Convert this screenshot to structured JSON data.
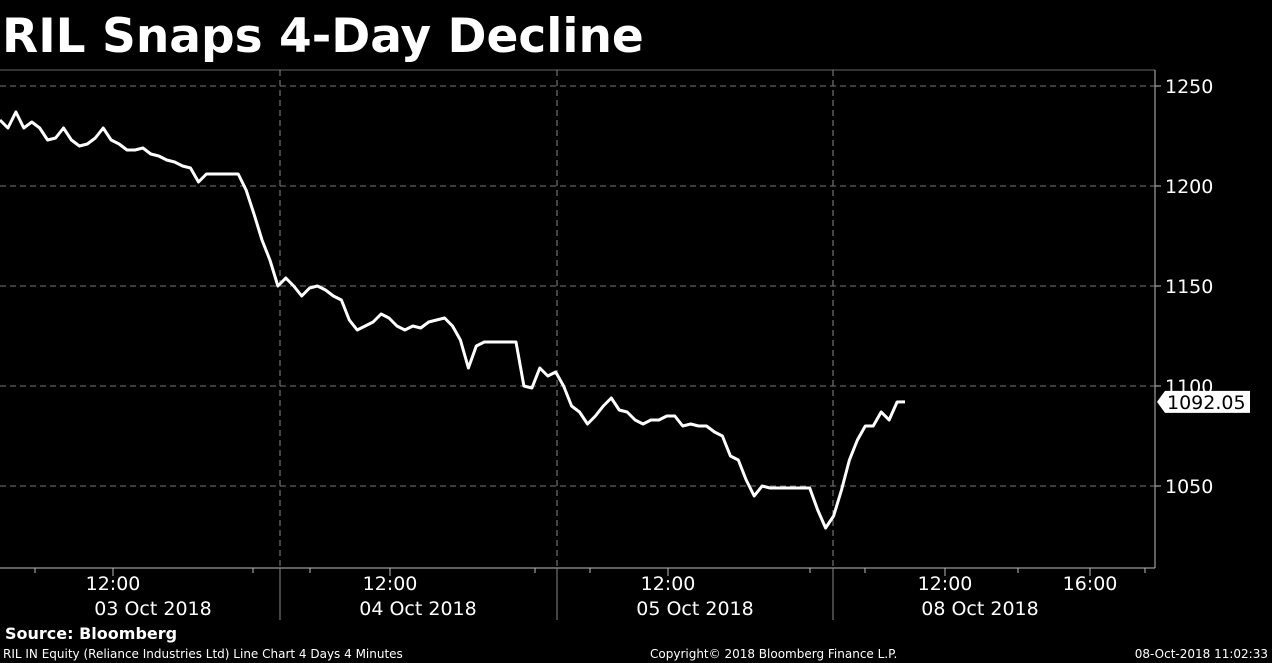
{
  "chart_data": {
    "type": "line",
    "title": "RIL Snaps 4-Day Decline",
    "source": "Source: Bloomberg",
    "description": "RIL IN Equity (Reliance Industries Ltd) Line Chart 4 Days 4 Minutes",
    "copyright": "Copyright© 2018 Bloomberg Finance L.P.",
    "timestamp": "08-Oct-2018 11:02:33",
    "time_labels": [
      "12:00",
      "12:00",
      "12:00",
      "12:00",
      "16:00"
    ],
    "date_labels": [
      "03 Oct 2018",
      "04 Oct 2018",
      "05 Oct 2018",
      "08 Oct 2018"
    ],
    "series": [
      {
        "color": "#ffffff",
        "values": [
          1233,
          1229,
          1237,
          1229,
          1232,
          1229,
          1223,
          1224,
          1229,
          1223,
          1220,
          1221,
          1224,
          1229,
          1223,
          1221,
          1218,
          1218,
          1219,
          1216,
          1215,
          1213,
          1212,
          1210,
          1209,
          1202,
          1206,
          1206,
          1206,
          1206,
          1206,
          1198,
          1186,
          1173,
          1163,
          1150,
          1154,
          1150,
          1145,
          1149,
          1150,
          1148,
          1145,
          1143,
          1133,
          1128,
          1130,
          1132,
          1136,
          1134,
          1130,
          1128,
          1130,
          1129,
          1132,
          1133,
          1134,
          1130,
          1123,
          1109,
          1120,
          1122,
          1122,
          1122,
          1122,
          1122,
          1100,
          1099,
          1109,
          1105,
          1107,
          1100,
          1090,
          1087,
          1081,
          1085,
          1090,
          1094,
          1088,
          1087,
          1083,
          1081,
          1083,
          1083,
          1085,
          1085,
          1080,
          1081,
          1080,
          1080,
          1077,
          1075,
          1065,
          1063,
          1053,
          1045,
          1050,
          1049,
          1049,
          1049,
          1049,
          1049,
          1049,
          1038,
          1029,
          1035,
          1048,
          1063,
          1073,
          1080,
          1080,
          1087,
          1083,
          1092,
          1092.05
        ]
      }
    ],
    "last_price": 1092.05,
    "ylim": [
      1009,
      1258
    ],
    "yticks": [
      1050,
      1100,
      1150,
      1200,
      1250
    ],
    "grid": true
  }
}
